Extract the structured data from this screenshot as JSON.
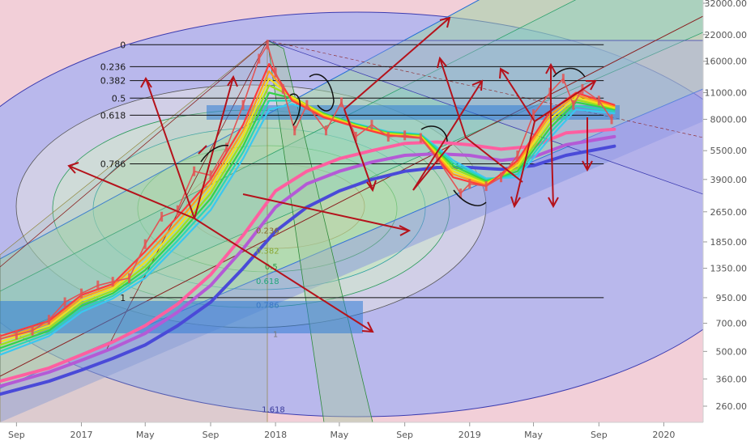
{
  "chart_data": {
    "type": "line",
    "title": "",
    "xlabel": "",
    "ylabel": "",
    "y_scale": "log",
    "ylim": [
      230,
      36000
    ],
    "xlim": [
      "2016-08-01",
      "2020-03-15"
    ],
    "grid": false,
    "x_ticks": [
      {
        "label": "Sep",
        "date": "2016-09-01"
      },
      {
        "label": "2017",
        "date": "2017-01-01"
      },
      {
        "label": "May",
        "date": "2017-05-01"
      },
      {
        "label": "Sep",
        "date": "2017-09-01"
      },
      {
        "label": "2018",
        "date": "2018-01-01"
      },
      {
        "label": "May",
        "date": "2018-05-01"
      },
      {
        "label": "Sep",
        "date": "2018-09-01"
      },
      {
        "label": "2019",
        "date": "2019-01-01"
      },
      {
        "label": "May",
        "date": "2019-05-01"
      },
      {
        "label": "Sep",
        "date": "2019-09-01"
      },
      {
        "label": "2020",
        "date": "2020-01-01"
      }
    ],
    "y_ticks": [
      {
        "label": "32000.00",
        "value": 32000
      },
      {
        "label": "22000.00",
        "value": 22000
      },
      {
        "label": "16000.00",
        "value": 16000
      },
      {
        "label": "11000.00",
        "value": 11000
      },
      {
        "label": "8000.00",
        "value": 8000
      },
      {
        "label": "5500.00",
        "value": 5500
      },
      {
        "label": "3900.00",
        "value": 3900
      },
      {
        "label": "2650.00",
        "value": 2650
      },
      {
        "label": "1850.00",
        "value": 1850
      },
      {
        "label": "1350.00",
        "value": 1350
      },
      {
        "label": "950.00",
        "value": 950
      },
      {
        "label": "700.00",
        "value": 700
      },
      {
        "label": "500.00",
        "value": 500
      },
      {
        "label": "360.00",
        "value": 360
      },
      {
        "label": "260.00",
        "value": 260
      }
    ],
    "fib_retracement": {
      "date_start": "2017-12-17",
      "date_end": "2019-09-10",
      "levels": [
        {
          "label": "0",
          "value": 19500
        },
        {
          "label": "0.236",
          "value": 15000
        },
        {
          "label": "0.382",
          "value": 12700
        },
        {
          "label": "0.5",
          "value": 10300
        },
        {
          "label": "0.618",
          "value": 8400
        },
        {
          "label": "0.786",
          "value": 4700
        },
        {
          "label": "1",
          "value": 950
        }
      ]
    },
    "fan_labels": [
      {
        "label": "0.236",
        "date": "2017-12-17",
        "value": 2050,
        "color": "#8a6a2a"
      },
      {
        "label": "0.382",
        "date": "2017-12-17",
        "value": 1610,
        "color": "#8aa632"
      },
      {
        "label": "0.5",
        "date": "2017-12-24",
        "value": 1330,
        "color": "#2f9b4a"
      },
      {
        "label": "0.618",
        "date": "2017-12-17",
        "value": 1120,
        "color": "#22a67a"
      },
      {
        "label": "0.786",
        "date": "2017-12-17",
        "value": 840,
        "color": "#3a78c4"
      },
      {
        "label": "1",
        "date": "2018-01-01",
        "value": 595,
        "color": "#777777"
      },
      {
        "label": "1.618",
        "date": "2017-12-28",
        "value": 242,
        "color": "#3a3a9a"
      }
    ],
    "price": {
      "name": "",
      "color": "#e25555",
      "x": [
        "2016-08-01",
        "2016-09-01",
        "2016-10-01",
        "2016-11-01",
        "2016-12-01",
        "2017-01-01",
        "2017-02-01",
        "2017-03-01",
        "2017-04-01",
        "2017-05-01",
        "2017-06-01",
        "2017-07-01",
        "2017-08-01",
        "2017-09-01",
        "2017-10-01",
        "2017-11-01",
        "2017-12-01",
        "2017-12-17",
        "2018-01-01",
        "2018-01-15",
        "2018-02-06",
        "2018-03-01",
        "2018-04-06",
        "2018-05-05",
        "2018-06-01",
        "2018-07-01",
        "2018-08-01",
        "2018-09-01",
        "2018-10-01",
        "2018-11-01",
        "2018-12-15",
        "2019-01-01",
        "2019-02-01",
        "2019-03-01",
        "2019-04-01",
        "2019-05-01",
        "2019-06-01",
        "2019-06-26",
        "2019-07-15",
        "2019-08-01",
        "2019-09-01",
        "2019-09-25"
      ],
      "y": [
        580,
        610,
        640,
        730,
        900,
        1000,
        1100,
        1150,
        1200,
        1800,
        2500,
        2700,
        4300,
        4100,
        5700,
        9500,
        16500,
        19500,
        14000,
        11500,
        7000,
        9500,
        7000,
        9800,
        6500,
        7500,
        6500,
        6600,
        6400,
        5000,
        3300,
        3700,
        3600,
        4000,
        5200,
        8500,
        11000,
        13000,
        9500,
        11500,
        10000,
        8000
      ]
    },
    "ribbon_ema": {
      "x": [
        "2016-08-01",
        "2016-11-01",
        "2017-01-01",
        "2017-03-01",
        "2017-05-01",
        "2017-07-01",
        "2017-09-01",
        "2017-11-01",
        "2017-12-20",
        "2018-02-01",
        "2018-04-01",
        "2018-06-01",
        "2018-08-01",
        "2018-10-01",
        "2018-12-01",
        "2019-02-01",
        "2019-04-01",
        "2019-06-01",
        "2019-07-20",
        "2019-09-30"
      ],
      "series": [
        {
          "name": "",
          "color": "#ff3b3b",
          "values": [
            600,
            720,
            980,
            1120,
            1650,
            2500,
            3900,
            7500,
            15500,
            10000,
            8200,
            7300,
            6600,
            6400,
            4000,
            3600,
            4900,
            8800,
            11000,
            9500
          ]
        },
        {
          "name": "",
          "color": "#ff9d1c",
          "values": [
            580,
            700,
            950,
            1090,
            1550,
            2350,
            3700,
            7000,
            14200,
            10200,
            8300,
            7350,
            6650,
            6450,
            4150,
            3650,
            4750,
            8400,
            10700,
            9350
          ]
        },
        {
          "name": "",
          "color": "#f3e21a",
          "values": [
            560,
            680,
            920,
            1060,
            1450,
            2200,
            3500,
            6600,
            13000,
            10400,
            8400,
            7400,
            6700,
            6500,
            4300,
            3700,
            4600,
            8000,
            10400,
            9200
          ]
        },
        {
          "name": "",
          "color": "#9be21a",
          "values": [
            540,
            660,
            890,
            1030,
            1380,
            2080,
            3300,
            6200,
            12000,
            10500,
            8500,
            7450,
            6750,
            6550,
            4450,
            3760,
            4450,
            7600,
            10100,
            9100
          ]
        },
        {
          "name": "",
          "color": "#34d24a",
          "values": [
            520,
            640,
            860,
            1000,
            1320,
            1980,
            3100,
            5800,
            11000,
            10300,
            8600,
            7500,
            6800,
            6600,
            4600,
            3820,
            4300,
            7200,
            9800,
            9000
          ]
        },
        {
          "name": "",
          "color": "#2ad6b4",
          "values": [
            500,
            620,
            830,
            970,
            1260,
            1880,
            2900,
            5400,
            10000,
            10000,
            8600,
            7550,
            6850,
            6650,
            4750,
            3880,
            4150,
            6800,
            9400,
            8800
          ]
        },
        {
          "name": "",
          "color": "#3ac8f0",
          "values": [
            480,
            600,
            800,
            940,
            1200,
            1780,
            2700,
            5000,
            9000,
            9600,
            8500,
            7600,
            6900,
            6700,
            4900,
            3950,
            4000,
            6400,
            9000,
            8600
          ]
        }
      ]
    },
    "long_ma": {
      "x": [
        "2016-08-01",
        "2016-11-01",
        "2017-01-01",
        "2017-03-01",
        "2017-05-01",
        "2017-07-01",
        "2017-09-01",
        "2017-11-01",
        "2018-01-01",
        "2018-03-01",
        "2018-05-01",
        "2018-07-01",
        "2018-09-01",
        "2018-11-01",
        "2019-01-01",
        "2019-03-01",
        "2019-05-01",
        "2019-07-01",
        "2019-09-30"
      ],
      "series": [
        {
          "name": "",
          "color": "#ff5fa0",
          "values": [
            350,
            410,
            480,
            560,
            680,
            880,
            1250,
            2000,
            3400,
            4300,
            5000,
            5500,
            6000,
            6100,
            5900,
            5600,
            5800,
            6800,
            7100
          ]
        },
        {
          "name": "",
          "color": "#b45ad6",
          "values": [
            330,
            390,
            450,
            520,
            620,
            800,
            1100,
            1700,
            2800,
            3700,
            4300,
            4800,
            5200,
            5300,
            5200,
            4900,
            5100,
            5900,
            6500
          ]
        },
        {
          "name": "",
          "color": "#4a4ad8",
          "values": [
            300,
            350,
            400,
            460,
            540,
            680,
            900,
            1350,
            2100,
            2800,
            3400,
            3900,
            4300,
            4500,
            4500,
            4400,
            4600,
            5200,
            5800
          ]
        }
      ]
    }
  }
}
